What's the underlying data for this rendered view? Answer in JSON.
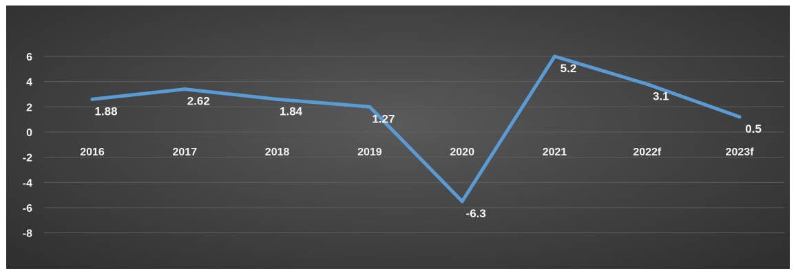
{
  "chart_data": {
    "type": "line",
    "categories": [
      "2016",
      "2017",
      "2018",
      "2019",
      "2020",
      "2021",
      "2022f",
      "2023f"
    ],
    "series": [
      {
        "values": [
          2.6,
          3.4,
          2.6,
          2.0,
          -5.5,
          6.0,
          3.8,
          1.2
        ],
        "data_labels": [
          "1.88",
          "2.62",
          "1.84",
          "1.27",
          "-6.3",
          "5.2",
          "3.1",
          "0.5"
        ],
        "color": "#5b9bd5"
      }
    ],
    "y_ticks": [
      6,
      4,
      2,
      0,
      -2,
      -4,
      -6,
      -8
    ],
    "ylim": [
      -8,
      6
    ],
    "grid": true,
    "legend": "none",
    "title": "",
    "xlabel": "",
    "ylabel": "",
    "colors": {
      "background": "#454545",
      "grid": "#5e5e5e",
      "text": "#f2f2f2"
    }
  }
}
